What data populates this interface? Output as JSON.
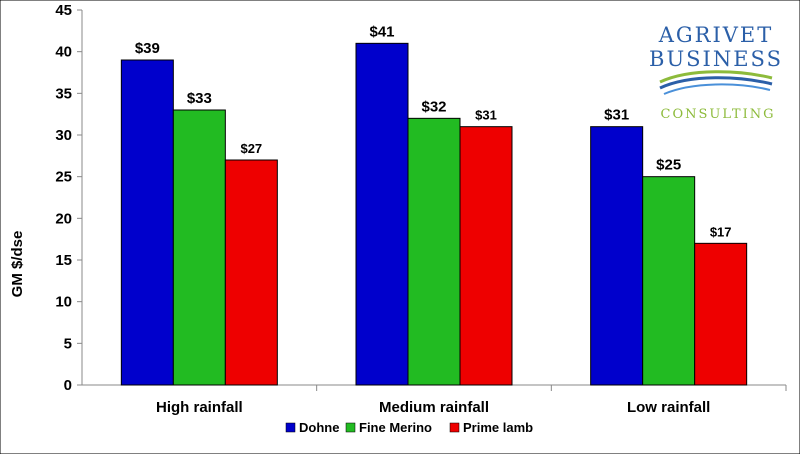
{
  "chart_data": {
    "type": "bar",
    "title": "",
    "xlabel": "",
    "ylabel": "GM $/dse",
    "ylim": [
      0,
      45
    ],
    "ytick_step": 5,
    "grid": false,
    "legend_position": "bottom",
    "categories": [
      "High rainfall",
      "Medium rainfall",
      "Low rainfall"
    ],
    "series": [
      {
        "name": "Dohne",
        "color": "#0000cc",
        "values": [
          39,
          41,
          31
        ],
        "labels": [
          "$39",
          "$41",
          "$31"
        ]
      },
      {
        "name": "Fine Merino",
        "color": "#22bb22",
        "values": [
          33,
          32,
          25
        ],
        "labels": [
          "$33",
          "$32",
          "$25"
        ]
      },
      {
        "name": "Prime lamb",
        "color": "#ee0000",
        "values": [
          27,
          31,
          17
        ],
        "labels": [
          "$27",
          "$31",
          "$17"
        ]
      }
    ]
  },
  "logo": {
    "line1": "AGRIVET",
    "line2": "BUSINESS",
    "line3": "CONSULTING",
    "colors": {
      "primary": "#2b5fa8",
      "accent": "#8dbb3b",
      "light": "#4a90d9"
    }
  }
}
